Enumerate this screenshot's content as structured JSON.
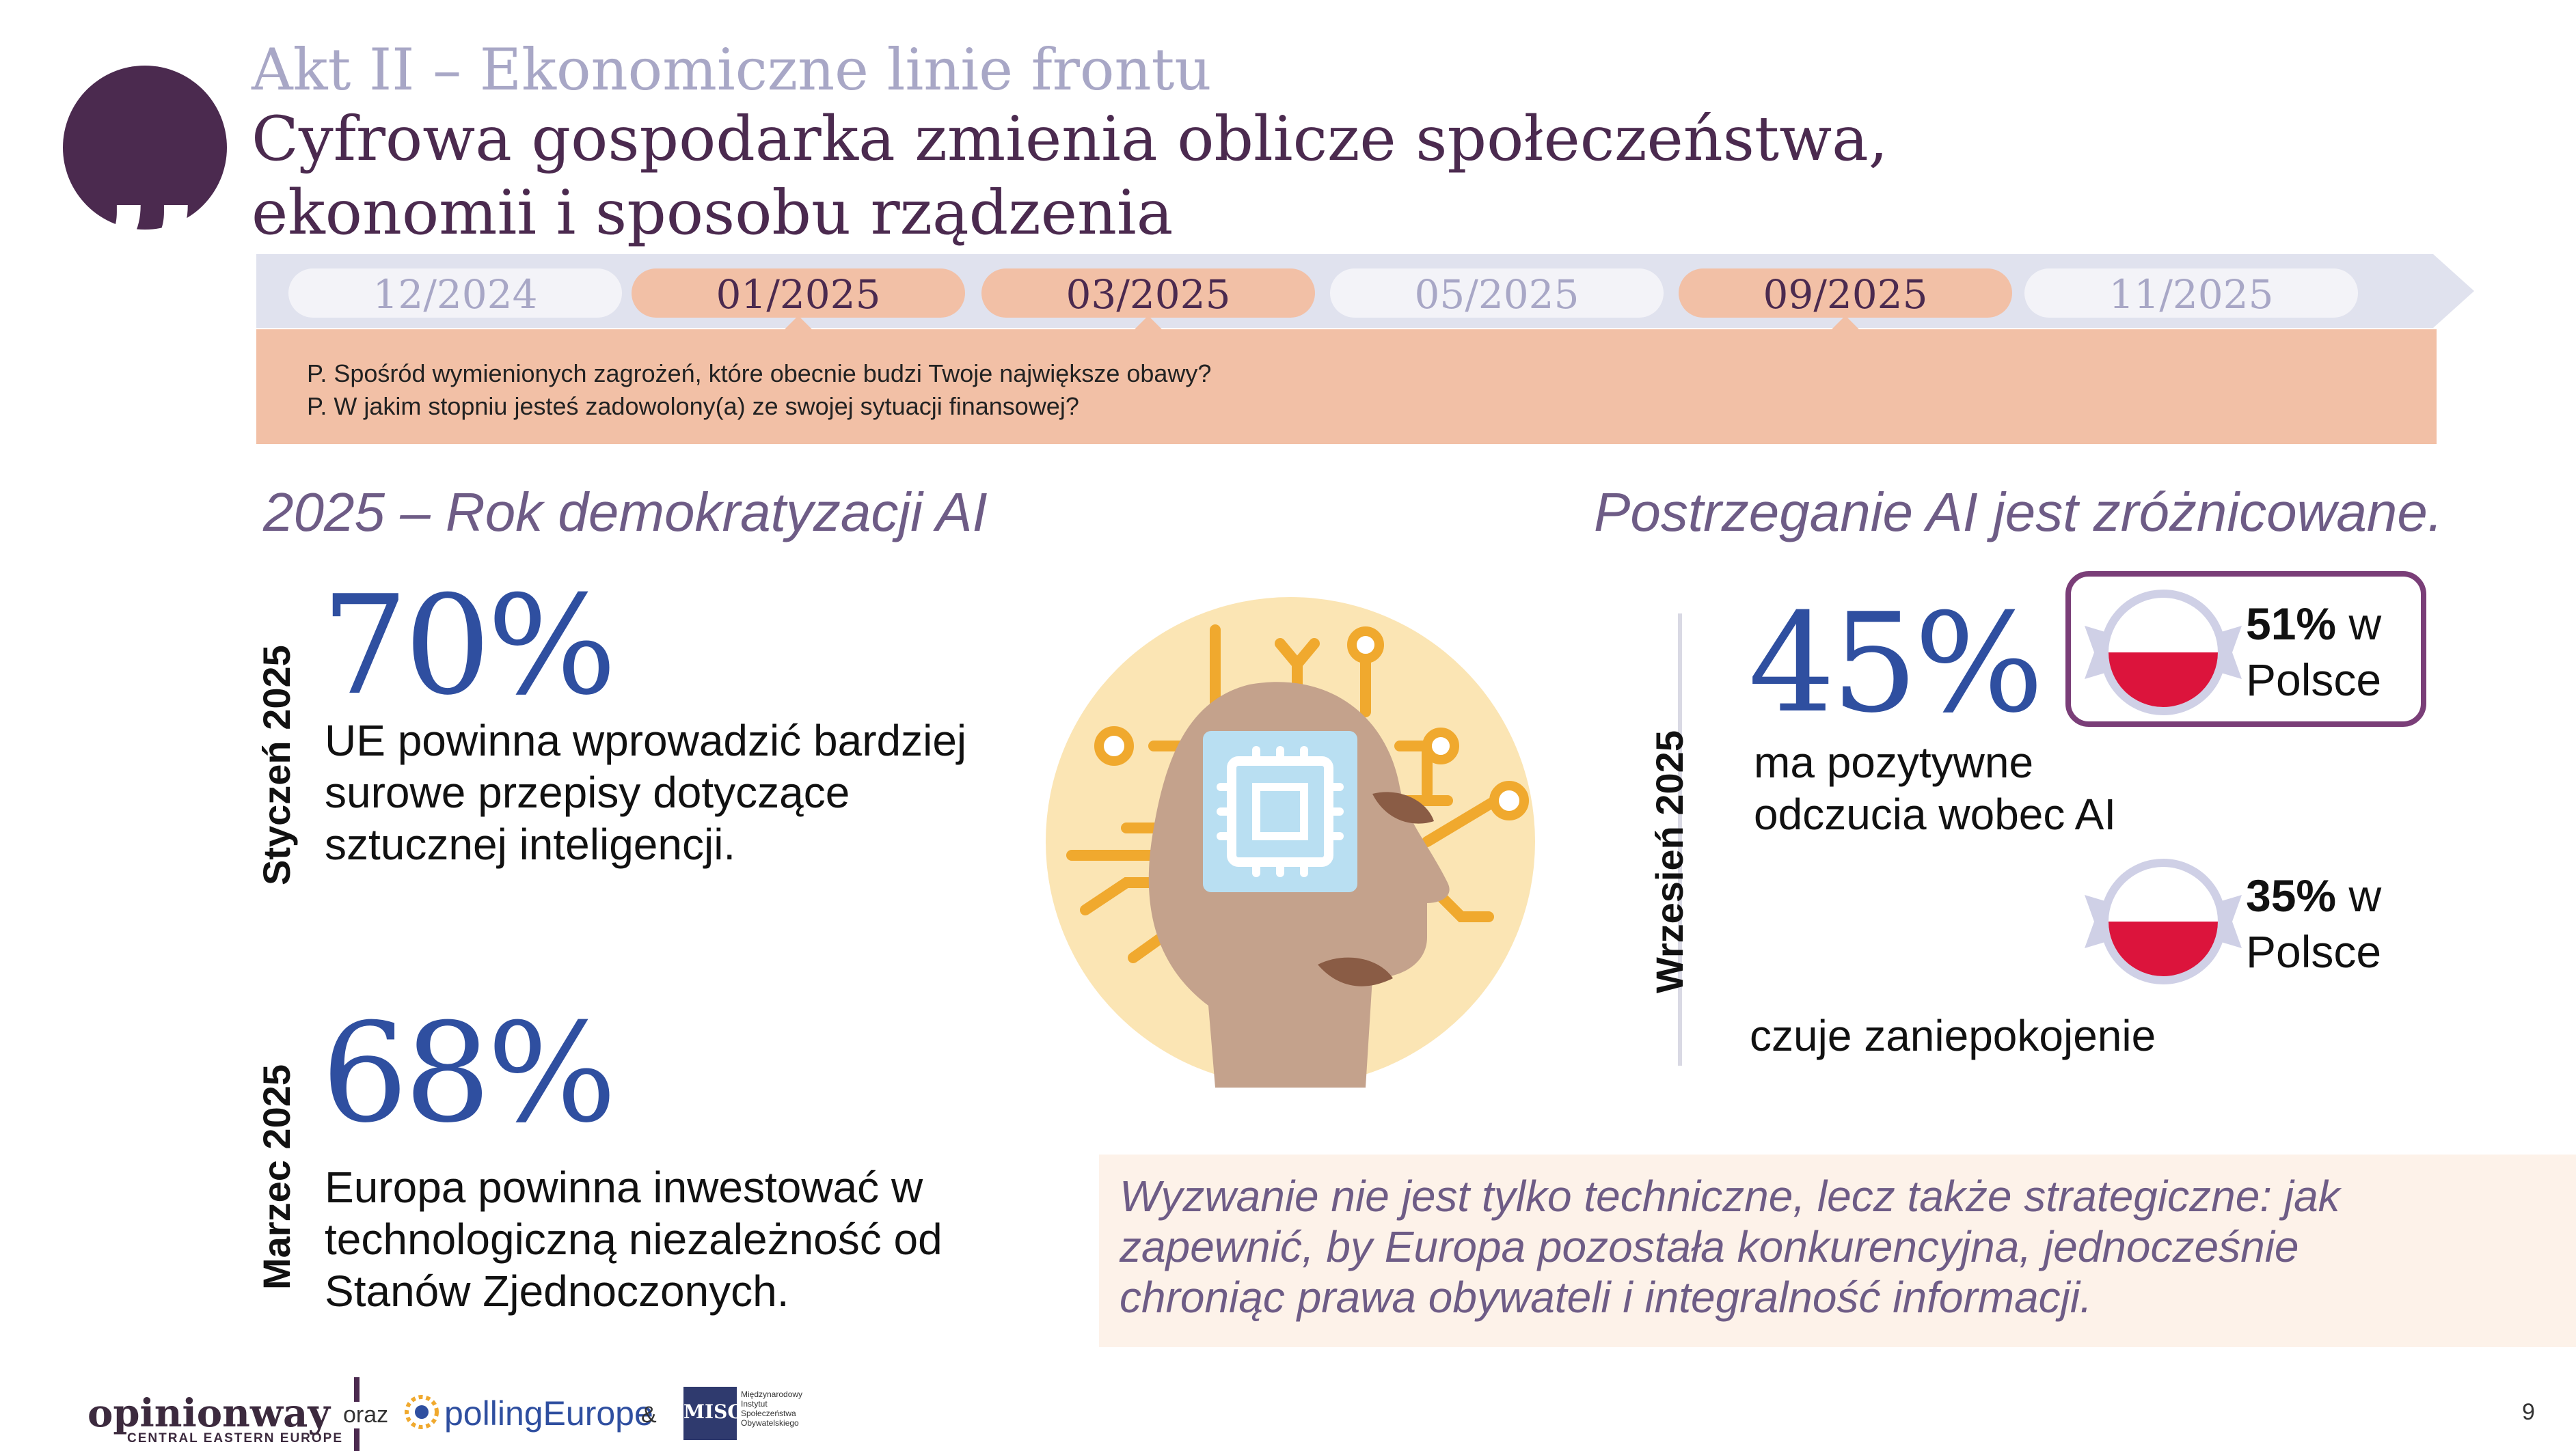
{
  "header": {
    "act": "Akt II – Ekonomiczne linie frontu",
    "title_line1": "Cyfrowa gospodarka zmienia oblicze społeczeństwa,",
    "title_line2": "ekonomii i sposobu rządzenia"
  },
  "timeline": {
    "items": [
      {
        "label": "12/2024",
        "active": false
      },
      {
        "label": "01/2025",
        "active": true
      },
      {
        "label": "03/2025",
        "active": true
      },
      {
        "label": "05/2025",
        "active": false
      },
      {
        "label": "09/2025",
        "active": true
      },
      {
        "label": "11/2025",
        "active": false
      }
    ],
    "questions": [
      "P. Spośród wymienionych zagrożeń, które obecnie budzi Twoje największe obawy?",
      "P. W jakim stopniu jesteś zadowolony(a) ze swojej sytuacji finansowej?"
    ]
  },
  "left": {
    "heading": "2025 – Rok demokratyzacji AI",
    "stats": [
      {
        "period": "Styczeń 2025",
        "value": "70%",
        "text_lines": [
          "UE powinna wprowadzić bardziej",
          "surowe przepisy dotyczące",
          "sztucznej inteligencji."
        ]
      },
      {
        "period": "Marzec 2025",
        "value": "68%",
        "text_lines": [
          "Europa powinna inwestować w",
          "technologiczną niezależność od",
          "Stanów Zjednoczonych."
        ]
      }
    ]
  },
  "right": {
    "heading": "Postrzeganie AI jest zróżnicowane.",
    "period": "Wrzesień 2025",
    "value": "45%",
    "text_lines": [
      "ma pozytywne",
      "odczucia wobec AI"
    ],
    "poland_positive": {
      "pct": "51%",
      "suffix": " w",
      "country": "Polsce"
    },
    "poland_concern": {
      "pct": "35%",
      "suffix": " w",
      "country": "Polsce"
    },
    "concern_text": "czuje zaniepokojenie"
  },
  "quote": {
    "lines": [
      "Wyzwanie nie jest tylko techniczne, lecz także strategiczne: jak",
      "zapewnić, by Europa pozostała konkurencyjna, jednocześnie",
      "chroniąc prawa obywateli i integralność informacji."
    ]
  },
  "footer": {
    "opinionway": "opinionway",
    "opinionway_sub": "CENTRAL EASTERN EUROPE",
    "oraz": "oraz",
    "polling": "pollingEurope",
    "amp": "&",
    "miso_mark": "MISO",
    "miso_lines": [
      "Międzynarodowy",
      "Instytut",
      "Społeczeństwa",
      "Obywatelskiego"
    ],
    "page_number": "9"
  },
  "colors": {
    "accent_purple": "#4b2a4f",
    "accent_blue": "#2f4fa0",
    "peach": "#f2c0a6",
    "muted_lavender": "#a8a7c6",
    "flag_red": "#dc143c"
  },
  "icons": [
    "quote-icon",
    "ai-head-icon",
    "poland-flag-icon"
  ]
}
